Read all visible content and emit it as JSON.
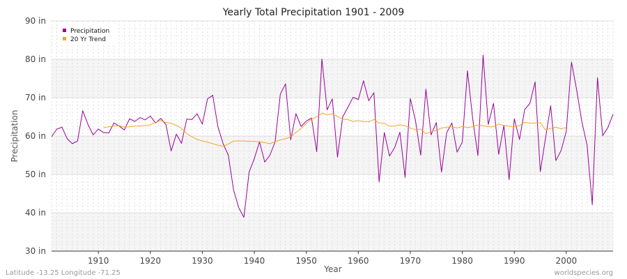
{
  "chart_data": {
    "type": "line",
    "title": "Yearly Total Precipitation 1901 - 2009",
    "xlabel": "Year",
    "ylabel": "Precipitation",
    "xlim": [
      1901,
      2009
    ],
    "ylim": [
      30,
      90
    ],
    "x_ticks": [
      1910,
      1920,
      1930,
      1940,
      1950,
      1960,
      1970,
      1980,
      1990,
      2000
    ],
    "y_ticks": [
      {
        "value": 30,
        "label": "30 in"
      },
      {
        "value": 40,
        "label": "40 in"
      },
      {
        "value": 50,
        "label": "50 in"
      },
      {
        "value": 60,
        "label": "60 in"
      },
      {
        "value": 70,
        "label": "70 in"
      },
      {
        "value": 80,
        "label": "80 in"
      },
      {
        "value": 90,
        "label": "90 in"
      }
    ],
    "legend_position": "top-left",
    "series": [
      {
        "name": "Precipitation",
        "color": "#990099",
        "x_start": 1901,
        "values": [
          59.8,
          61.8,
          62.3,
          59.3,
          58.0,
          58.7,
          66.6,
          63.0,
          60.3,
          61.8,
          60.9,
          60.8,
          63.4,
          62.6,
          61.6,
          64.5,
          63.8,
          64.8,
          64.2,
          65.2,
          63.4,
          64.6,
          63.0,
          56.1,
          60.5,
          58.1,
          64.4,
          64.3,
          65.8,
          63.1,
          69.7,
          70.6,
          62.4,
          58.0,
          55.0,
          46.0,
          41.3,
          38.8,
          50.6,
          54.1,
          58.5,
          53.2,
          55.0,
          58.5,
          70.9,
          73.6,
          59.0,
          65.8,
          62.5,
          63.9,
          64.7,
          55.9,
          80.1,
          66.8,
          69.7,
          54.5,
          65.0,
          67.5,
          70.1,
          69.5,
          74.4,
          69.2,
          71.3,
          48.0,
          60.9,
          54.8,
          57.0,
          61.0,
          49.2,
          69.8,
          64.0,
          55.0,
          72.2,
          60.3,
          63.5,
          50.6,
          60.9,
          63.4,
          55.8,
          58.4,
          77.0,
          64.5,
          54.9,
          81.1,
          63.0,
          68.5,
          55.2,
          62.8,
          48.6,
          64.5,
          59.1,
          66.9,
          68.5,
          74.1,
          50.7,
          59.4,
          67.9,
          53.6,
          56.2,
          61.2,
          79.3,
          72.0,
          63.7,
          57.6,
          42.1,
          75.2,
          60.1,
          62.2,
          65.7
        ]
      },
      {
        "name": "20 Yr Trend",
        "color": "#f5a623",
        "x_start": 1911,
        "values": [
          62.2,
          62.4,
          62.6,
          62.7,
          62.3,
          62.4,
          62.6,
          62.6,
          62.7,
          62.9,
          63.6,
          64.0,
          63.6,
          63.3,
          62.8,
          62.0,
          60.6,
          59.8,
          59.1,
          58.7,
          58.4,
          58.0,
          57.6,
          57.3,
          57.9,
          58.7,
          58.7,
          58.7,
          58.6,
          58.6,
          58.5,
          58.3,
          58.0,
          58.5,
          59.0,
          59.3,
          59.8,
          60.9,
          62.0,
          63.3,
          64.4,
          65.0,
          65.9,
          65.6,
          65.8,
          65.1,
          64.4,
          64.3,
          63.8,
          64.0,
          63.8,
          63.7,
          64.3,
          63.4,
          63.3,
          62.6,
          62.6,
          62.9,
          62.7,
          62.1,
          61.6,
          61.8,
          60.6,
          61.2,
          61.4,
          62.1,
          62.3,
          62.4,
          62.1,
          62.5,
          62.2,
          62.4,
          62.9,
          62.7,
          62.4,
          62.4,
          63.1,
          62.7,
          62.6,
          62.4,
          62.7,
          63.6,
          63.3,
          63.4,
          63.5,
          61.6,
          62.0,
          62.3,
          61.9,
          62.2
        ]
      }
    ]
  },
  "footer": {
    "left": "Latitude -13.25 Longitude -71.25",
    "right": "worldspecies.org"
  }
}
